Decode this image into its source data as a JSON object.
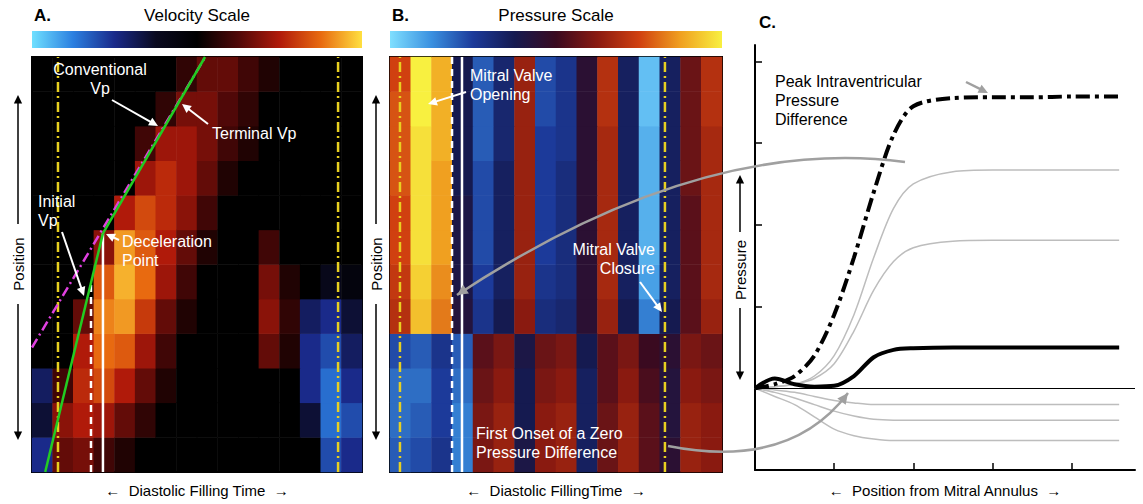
{
  "chart_data": [
    {
      "type": "heatmap",
      "panel": "A.",
      "title": "Velocity Scale",
      "xlabel": "←  Diastolic Filling Time  →",
      "ylabel": "Position",
      "tick_labels": false,
      "colorbar": {
        "range": [
          -1,
          1
        ],
        "colors": [
          "#6fe0ff",
          "#2b7fe0",
          "#1a2a8a",
          "#0a0a20",
          "#000000",
          "#500808",
          "#b01a0a",
          "#e86a10",
          "#ffe040"
        ]
      },
      "xlim": [
        0,
        16
      ],
      "ylim": [
        0,
        12
      ],
      "z": [
        [
          -0.5,
          0.3,
          0.35,
          0.2,
          0.1,
          0,
          0,
          0,
          0,
          0,
          0,
          0,
          0,
          0,
          -0.6,
          -0.5
        ],
        [
          -0.3,
          0.4,
          0.5,
          0.45,
          0.3,
          0.15,
          0,
          0,
          0,
          0,
          0,
          0,
          0,
          -0.3,
          -0.7,
          -0.6
        ],
        [
          -0.4,
          0.2,
          0.55,
          0.65,
          0.5,
          0.3,
          0.1,
          0,
          0,
          0,
          0,
          0,
          0,
          -0.5,
          -0.7,
          -0.5
        ],
        [
          0,
          0,
          0.5,
          0.75,
          0.7,
          0.45,
          0.2,
          0,
          0,
          0,
          0,
          0.3,
          0.1,
          -0.5,
          -0.6,
          -0.4
        ],
        [
          0,
          0,
          0.3,
          0.8,
          0.85,
          0.6,
          0.3,
          0.1,
          0,
          0,
          0,
          0.4,
          0.15,
          -0.4,
          -0.5,
          -0.3
        ],
        [
          0,
          0,
          0,
          0.7,
          0.9,
          0.75,
          0.45,
          0.2,
          0,
          0,
          0,
          0.35,
          0.1,
          0,
          -0.2,
          -0.1
        ],
        [
          0,
          0,
          0,
          0.4,
          0.85,
          0.7,
          0.5,
          0.3,
          0.1,
          0,
          0,
          0.2,
          0,
          0,
          0,
          0
        ],
        [
          0,
          0,
          0,
          0,
          0.5,
          0.65,
          0.55,
          0.4,
          0.2,
          0,
          0,
          0,
          0,
          0,
          0,
          0
        ],
        [
          0,
          0,
          0,
          0,
          0,
          0.45,
          0.55,
          0.45,
          0.3,
          0.1,
          0,
          0,
          0,
          0,
          0,
          0
        ],
        [
          0,
          0,
          0,
          0,
          0,
          0.2,
          0.45,
          0.45,
          0.35,
          0.2,
          0.1,
          0,
          0,
          0,
          0,
          0
        ],
        [
          0,
          0,
          0,
          0,
          0,
          0,
          0.15,
          0.35,
          0.35,
          0.25,
          0.15,
          0,
          0,
          0,
          0,
          0
        ],
        [
          0,
          0,
          0,
          0,
          0,
          0,
          0,
          0.15,
          0.3,
          0.3,
          0.2,
          0.1,
          0,
          0,
          0,
          0
        ]
      ],
      "lines": [
        {
          "color": "#ffffff",
          "line_style": "solid",
          "points": [
            [
              3.44,
              0
            ],
            [
              3.44,
              6.9
            ]
          ]
        },
        {
          "color": "#ffffff",
          "line_style": "dashed",
          "points": [
            [
              2.86,
              0
            ],
            [
              2.86,
              5.5
            ]
          ]
        },
        {
          "color": "#e8d020",
          "line_style": "dashdot",
          "points": [
            [
              1.26,
              0
            ],
            [
              1.26,
              12
            ]
          ]
        },
        {
          "color": "#e8d020",
          "line_style": "dashdot",
          "points": [
            [
              14.84,
              0
            ],
            [
              14.84,
              12
            ]
          ]
        },
        {
          "color": "#e040e0",
          "line_style": "dashdot",
          "points": [
            [
              0,
              3.6
            ],
            [
              8.4,
              12
            ]
          ]
        },
        {
          "color": "#22cc22",
          "line_style": "solid",
          "points": [
            [
              0.64,
              0
            ],
            [
              3.44,
              6.9
            ]
          ]
        },
        {
          "color": "#22cc22",
          "line_style": "solid",
          "points": [
            [
              3.44,
              6.9
            ],
            [
              8.39,
              12
            ]
          ]
        }
      ],
      "annotations": [
        "Conventional Vp",
        "Terminal Vp",
        "Deceleration Point",
        "Initial Vp"
      ]
    },
    {
      "type": "heatmap",
      "panel": "B.",
      "title": "Pressure Scale",
      "xlabel": "←  Diastolic FillingTime  →",
      "ylabel": "Position",
      "tick_labels": false,
      "colorbar": {
        "range": [
          -1,
          1
        ],
        "colors": [
          "#7fdfff",
          "#3a90e0",
          "#1c3a9a",
          "#151a50",
          "#3a0a20",
          "#8a1a10",
          "#d04010",
          "#f0a020",
          "#f8f040"
        ]
      },
      "xlim": [
        0,
        16
      ],
      "ylim": [
        0,
        12
      ],
      "z": [
        [
          -0.6,
          -0.55,
          -0.45,
          -0.7,
          0.2,
          0.3,
          -0.2,
          0.25,
          0.3,
          -0.3,
          0.15,
          0.3,
          0.1,
          -0.1,
          0.3,
          0.25
        ],
        [
          -0.65,
          -0.6,
          -0.5,
          -0.7,
          0.2,
          0.3,
          -0.25,
          0.25,
          0.3,
          -0.3,
          0.15,
          0.3,
          0.1,
          -0.15,
          0.3,
          0.25
        ],
        [
          -0.65,
          -0.65,
          -0.5,
          -0.65,
          0.15,
          0.25,
          -0.25,
          0.2,
          0.25,
          -0.3,
          0.1,
          0.25,
          0.05,
          -0.15,
          0.25,
          0.2
        ],
        [
          -0.55,
          -0.6,
          -0.45,
          -0.6,
          0.1,
          0.2,
          -0.2,
          0.15,
          0.2,
          -0.25,
          0.1,
          0.2,
          0,
          -0.1,
          0.2,
          0.15
        ],
        [
          0.4,
          0.85,
          0.65,
          -0.15,
          -0.45,
          -0.25,
          0.25,
          -0.4,
          -0.35,
          -0.1,
          0.3,
          -0.25,
          -0.7,
          -0.25,
          0.1,
          0.3
        ],
        [
          0.45,
          0.9,
          0.7,
          -0.2,
          -0.5,
          -0.3,
          0.3,
          -0.45,
          -0.4,
          -0.1,
          0.35,
          -0.3,
          -0.8,
          -0.3,
          0.1,
          0.35
        ],
        [
          0.5,
          0.95,
          0.75,
          -0.2,
          -0.55,
          -0.3,
          0.3,
          -0.5,
          -0.4,
          -0.1,
          0.35,
          -0.3,
          -0.85,
          -0.3,
          0.1,
          0.35
        ],
        [
          0.5,
          0.95,
          0.75,
          -0.2,
          -0.55,
          -0.3,
          0.3,
          -0.5,
          -0.4,
          -0.1,
          0.35,
          -0.3,
          -0.85,
          -0.3,
          0.1,
          0.35
        ],
        [
          0.55,
          0.95,
          0.75,
          -0.25,
          -0.55,
          -0.3,
          0.3,
          -0.5,
          -0.4,
          -0.1,
          0.35,
          -0.3,
          -0.85,
          -0.3,
          0.15,
          0.35
        ],
        [
          0.55,
          0.95,
          0.8,
          -0.25,
          -0.6,
          -0.35,
          0.3,
          -0.5,
          -0.45,
          -0.1,
          0.35,
          -0.3,
          -0.85,
          -0.3,
          0.15,
          0.35
        ],
        [
          0.55,
          1,
          0.8,
          -0.25,
          -0.6,
          -0.35,
          0.3,
          -0.55,
          -0.45,
          -0.1,
          0.4,
          -0.3,
          -0.9,
          -0.3,
          0.15,
          0.4
        ],
        [
          0.5,
          1,
          0.8,
          -0.25,
          -0.6,
          -0.35,
          0.3,
          -0.55,
          -0.45,
          -0.1,
          0.4,
          -0.3,
          -0.9,
          -0.3,
          0.15,
          0.4
        ]
      ],
      "lines": [
        {
          "color": "#e8d020",
          "line_style": "dashdot",
          "points": [
            [
              0.48,
              0
            ],
            [
              0.48,
              12
            ]
          ]
        },
        {
          "color": "#e8d020",
          "line_style": "dashdot",
          "points": [
            [
              13.25,
              0
            ],
            [
              13.25,
              12
            ]
          ]
        },
        {
          "color": "#ffffff",
          "line_style": "dashed",
          "points": [
            [
              2.99,
              0
            ],
            [
              2.99,
              12
            ]
          ]
        },
        {
          "color": "#ffffff",
          "line_style": "solid",
          "points": [
            [
              3.47,
              0
            ],
            [
              3.47,
              12
            ]
          ]
        }
      ],
      "annotations": [
        "Mitral Valve Opening",
        "Mitral Valve Closure",
        "First Onset of a Zero Pressure Difference"
      ]
    },
    {
      "type": "line",
      "panel": "C.",
      "xlabel": "←  Position from Mitral Annulus  →",
      "ylabel": "Pressure",
      "tick_labels": false,
      "xlim": [
        0,
        4.8
      ],
      "xticks": [
        0,
        1,
        2,
        3,
        4
      ],
      "ylim": [
        -1,
        4.2
      ],
      "yticks": [
        -1,
        0,
        1,
        2,
        3,
        4
      ],
      "zero_line": 0,
      "x": [
        0,
        0.25,
        0.5,
        0.75,
        1,
        1.25,
        1.5,
        1.75,
        2,
        2.5,
        3,
        3.5,
        4,
        4.6
      ],
      "series": [
        {
          "color": "#bdbdbd",
          "line_style": "solid",
          "values": [
            0,
            0.02,
            0.05,
            0.15,
            0.4,
            0.9,
            1.6,
            2.2,
            2.5,
            2.65,
            2.67,
            2.67,
            2.67,
            2.67
          ]
        },
        {
          "color": "#bdbdbd",
          "line_style": "solid",
          "values": [
            0,
            0.02,
            0.05,
            0.12,
            0.3,
            0.7,
            1.2,
            1.55,
            1.72,
            1.8,
            1.81,
            1.81,
            1.81,
            1.81
          ]
        },
        {
          "color": "#bdbdbd",
          "line_style": "solid",
          "values": [
            0,
            -0.02,
            -0.05,
            -0.1,
            -0.15,
            -0.18,
            -0.2,
            -0.2,
            -0.2,
            -0.2,
            -0.2,
            -0.2,
            -0.2,
            -0.2
          ]
        },
        {
          "color": "#bdbdbd",
          "line_style": "solid",
          "values": [
            0,
            -0.05,
            -0.12,
            -0.2,
            -0.28,
            -0.34,
            -0.38,
            -0.39,
            -0.39,
            -0.39,
            -0.39,
            -0.39,
            -0.39,
            -0.39
          ]
        },
        {
          "color": "#bdbdbd",
          "line_style": "solid",
          "values": [
            0,
            -0.1,
            -0.2,
            -0.35,
            -0.5,
            -0.58,
            -0.62,
            -0.64,
            -0.64,
            -0.64,
            -0.64,
            -0.64,
            -0.64,
            -0.64
          ]
        },
        {
          "color": "#000000",
          "line_style": "dashdot",
          "values": [
            0,
            0.05,
            0.15,
            0.4,
            0.9,
            1.6,
            2.4,
            3.1,
            3.45,
            3.55,
            3.56,
            3.56,
            3.57,
            3.57
          ]
        },
        {
          "color": "#000000",
          "line_style": "solid",
          "values": [
            0,
            0.12,
            0.05,
            0.02,
            0.03,
            0.15,
            0.38,
            0.47,
            0.49,
            0.5,
            0.5,
            0.5,
            0.5,
            0.5
          ]
        }
      ],
      "annotations": [
        "Peak Intraventricular Pressure Difference"
      ]
    }
  ]
}
